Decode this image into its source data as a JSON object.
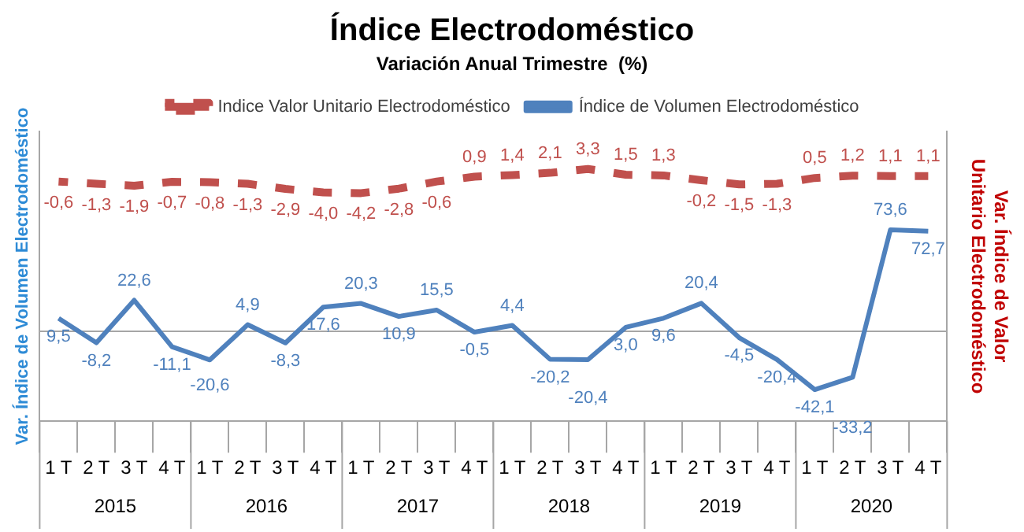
{
  "chart_data": {
    "type": "line",
    "title": "Índice Electrodoméstico",
    "subtitle": "Variación Anual Trimestre  (%)",
    "ylabel": "Var. Índice de Volumen Electrodoméstico",
    "y2label": "Var. Índice de Valor Unitario Electrodoméstico",
    "categories": [
      "1 T",
      "2 T",
      "3 T",
      "4 T",
      "1 T",
      "2 T",
      "3 T",
      "4 T",
      "1 T",
      "2 T",
      "3 T",
      "4 T",
      "1 T",
      "2 T",
      "3 T",
      "4 T",
      "1 T",
      "2 T",
      "3 T",
      "4 T",
      "1 T",
      "2 T",
      "3 T",
      "4 T"
    ],
    "annotations": [
      "2015",
      "2016",
      "2017",
      "2018",
      "2019",
      "2020"
    ],
    "ylim": [
      -65,
      145
    ],
    "y2lim": [
      -75,
      15
    ],
    "tick_labels": "x",
    "grid": false,
    "legend": "top",
    "marker": "none",
    "series": [
      {
        "name": "Indice Valor Unitario Electrodoméstico",
        "color": "#c0504d",
        "axis": "y2",
        "line_style": "dashed",
        "values": [
          -0.6,
          -1.3,
          -1.9,
          -0.7,
          -0.8,
          -1.3,
          -2.9,
          -4.0,
          -4.2,
          -2.8,
          -0.6,
          0.9,
          1.4,
          2.1,
          3.3,
          1.5,
          1.3,
          -0.2,
          -1.5,
          -1.3,
          0.5,
          1.2,
          1.1,
          1.1
        ],
        "value_labels": [
          "-0,6",
          "-1,3",
          "-1,9",
          "-0,7",
          "-0,8",
          "-1,3",
          "-2,9",
          "-4,0",
          "-4,2",
          "-2,8",
          "-0,6",
          "0,9",
          "1,4",
          "2,1",
          "3,3",
          "1,5",
          "1,3",
          "-0,2",
          "-1,5",
          "-1,3",
          "0,5",
          "1,2",
          "1,1",
          "1,1"
        ]
      },
      {
        "name": "Índice de Volumen Electrodoméstico",
        "color": "#4f81bd",
        "axis": "y",
        "line_style": "solid",
        "values": [
          9.5,
          -8.2,
          22.6,
          -11.1,
          -20.6,
          4.9,
          -8.3,
          17.6,
          20.3,
          10.9,
          15.5,
          -0.5,
          4.4,
          -20.2,
          -20.4,
          3.0,
          9.6,
          20.4,
          -4.5,
          -20.4,
          -42.1,
          -33.2,
          73.6,
          72.7
        ],
        "value_labels": [
          "9,5",
          "-8,2",
          "22,6",
          "-11,1",
          "-20,6",
          "4,9",
          "-8,3",
          "17,6",
          "20,3",
          "10,9",
          "15,5",
          "-0,5",
          "4,4",
          "-20,2",
          "-20,4",
          "3,0",
          "9,6",
          "20,4",
          "-4,5",
          "-20,4",
          "-42,1",
          "-33,2",
          "73,6",
          "72,7"
        ]
      }
    ]
  }
}
